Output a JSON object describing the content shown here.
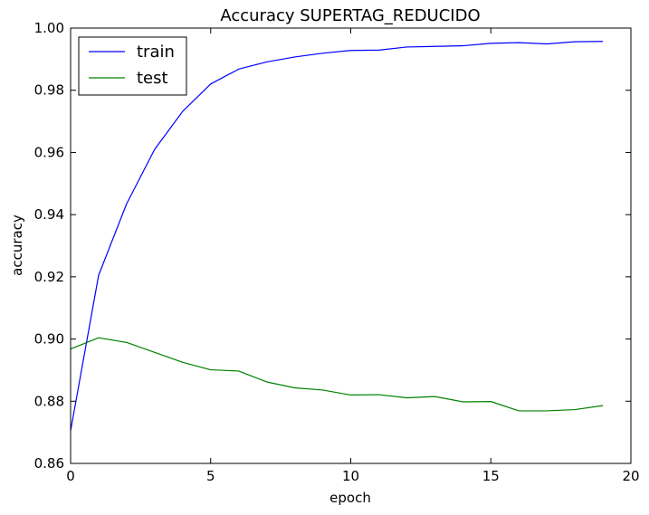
{
  "chart_data": {
    "type": "line",
    "title": "Accuracy SUPERTAG_REDUCIDO",
    "xlabel": "epoch",
    "ylabel": "accuracy",
    "xlim": [
      0,
      20
    ],
    "ylim": [
      0.86,
      1.0
    ],
    "x_ticks": [
      0,
      5,
      10,
      15,
      20
    ],
    "x_tick_labels": [
      "0",
      "5",
      "10",
      "15",
      "20"
    ],
    "y_ticks": [
      0.86,
      0.88,
      0.9,
      0.92,
      0.94,
      0.96,
      0.98,
      1.0
    ],
    "y_tick_labels": [
      "0.86",
      "0.88",
      "0.90",
      "0.92",
      "0.94",
      "0.96",
      "0.98",
      "1.00"
    ],
    "grid": false,
    "legend_position": "upper-left",
    "x": [
      0,
      1,
      2,
      3,
      4,
      5,
      6,
      7,
      8,
      9,
      10,
      11,
      12,
      13,
      14,
      15,
      16,
      17,
      18,
      19
    ],
    "series": [
      {
        "name": "train",
        "color": "#0000ff",
        "values": [
          0.8705,
          0.9205,
          0.9435,
          0.961,
          0.9732,
          0.982,
          0.9868,
          0.9891,
          0.9907,
          0.9919,
          0.9928,
          0.9929,
          0.9939,
          0.9941,
          0.9943,
          0.9951,
          0.9953,
          0.9949,
          0.9956,
          0.9957
        ]
      },
      {
        "name": "test",
        "color": "#008000",
        "values": [
          0.8968,
          0.9004,
          0.8989,
          0.8957,
          0.8925,
          0.8901,
          0.8897,
          0.8862,
          0.8843,
          0.8836,
          0.882,
          0.8821,
          0.8811,
          0.8815,
          0.8798,
          0.8799,
          0.8769,
          0.8769,
          0.8773,
          0.8786
        ]
      }
    ]
  }
}
